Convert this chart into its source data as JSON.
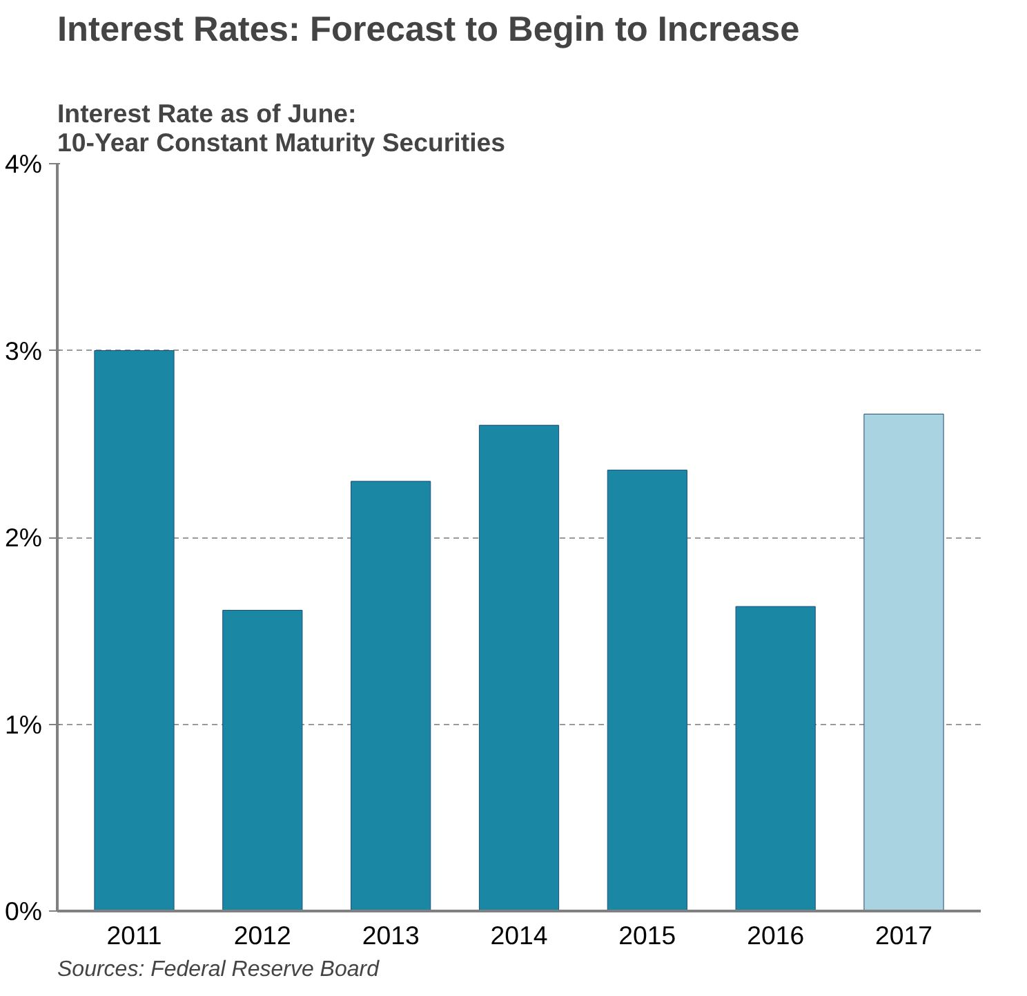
{
  "chart_data": {
    "type": "bar",
    "title": "Interest Rates: Forecast to Begin to Increase",
    "subtitle": "Interest Rate as of June:\n10-Year Constant Maturity Securities",
    "categories": [
      "2011",
      "2012",
      "2013",
      "2014",
      "2015",
      "2016",
      "2017"
    ],
    "values": [
      3.0,
      1.61,
      2.3,
      2.6,
      2.36,
      1.63,
      2.66
    ],
    "colors": [
      "#1a87a4",
      "#1a87a4",
      "#1a87a4",
      "#1a87a4",
      "#1a87a4",
      "#1a87a4",
      "#a9d3e0"
    ],
    "ylim": [
      0,
      4
    ],
    "yticks": [
      {
        "value": 0,
        "label": "0%"
      },
      {
        "value": 1,
        "label": "1%"
      },
      {
        "value": 2,
        "label": "2%"
      },
      {
        "value": 3,
        "label": "3%"
      },
      {
        "value": 4,
        "label": "4%"
      }
    ],
    "grid": "y",
    "annotations": [
      "Sources: Federal Reserve Board"
    ]
  }
}
